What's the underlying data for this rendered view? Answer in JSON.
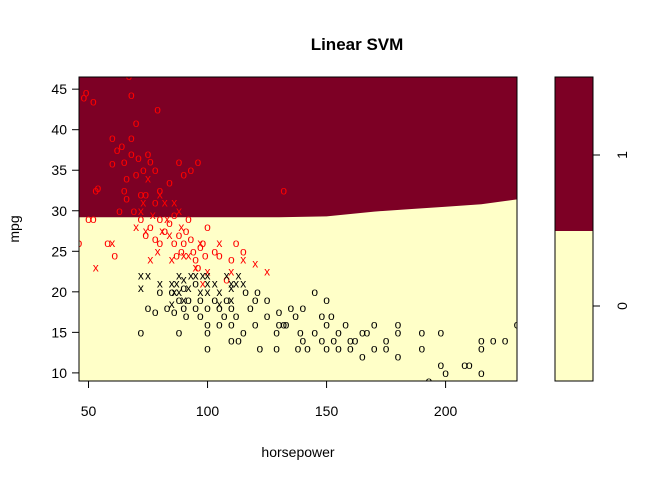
{
  "colors": {
    "class_0": "#FFFFC8",
    "class_1": "#7D0025",
    "point_0": "#000000",
    "point_1": "#FF0000"
  },
  "chart_data": {
    "type": "scatter",
    "title": "Linear SVM",
    "xlabel": "horsepower",
    "ylabel": "mpg",
    "xlim": [
      46,
      230
    ],
    "ylim": [
      9,
      46.5
    ],
    "xticks": [
      50,
      100,
      150,
      200
    ],
    "yticks": [
      10,
      15,
      20,
      25,
      30,
      35,
      40,
      45
    ],
    "decision_boundary": {
      "x": [
        46,
        100,
        130,
        150,
        160,
        170,
        185,
        200,
        215,
        225,
        230
      ],
      "y": [
        29.2,
        29.2,
        29.2,
        29.3,
        29.6,
        29.9,
        30.2,
        30.5,
        30.8,
        31.2,
        31.4
      ],
      "above_class": "1",
      "below_class": "0"
    },
    "legend": {
      "labels": [
        "0",
        "1"
      ],
      "position": "right"
    },
    "points_class_1": [
      [
        46,
        26,
        "o"
      ],
      [
        48,
        44,
        "o"
      ],
      [
        49,
        44.6,
        "o"
      ],
      [
        50,
        29,
        "o"
      ],
      [
        52,
        43.5,
        "o"
      ],
      [
        52,
        29,
        "o"
      ],
      [
        53,
        32.5,
        "o"
      ],
      [
        54,
        32.8,
        "o"
      ],
      [
        58,
        26,
        "o"
      ],
      [
        60,
        35.8,
        "o"
      ],
      [
        60,
        39,
        "o"
      ],
      [
        61,
        24.5,
        "o"
      ],
      [
        62,
        37.5,
        "o"
      ],
      [
        64,
        38,
        "o"
      ],
      [
        65,
        36,
        "o"
      ],
      [
        65,
        32.5,
        "o"
      ],
      [
        66,
        34,
        "o"
      ],
      [
        67,
        46.6,
        "o"
      ],
      [
        68,
        37,
        "o"
      ],
      [
        68,
        44.3,
        "o"
      ],
      [
        70,
        34.5,
        "o"
      ],
      [
        70,
        40.8,
        "o"
      ],
      [
        71,
        36.5,
        "o"
      ],
      [
        72,
        32,
        "o"
      ],
      [
        73,
        35,
        "o"
      ],
      [
        74,
        32,
        "o"
      ],
      [
        75,
        37,
        "o"
      ],
      [
        76,
        36.1,
        "o"
      ],
      [
        78,
        35,
        "o"
      ],
      [
        80,
        29,
        "o"
      ],
      [
        84,
        33.5,
        "o"
      ],
      [
        88,
        36,
        "o"
      ],
      [
        90,
        34.5,
        "o"
      ],
      [
        92,
        29,
        "o"
      ],
      [
        94,
        25,
        "o"
      ],
      [
        96,
        23,
        "o"
      ],
      [
        100,
        28,
        "o"
      ],
      [
        103,
        25,
        "o"
      ],
      [
        105,
        24.5,
        "o"
      ],
      [
        108,
        21.5,
        "o"
      ],
      [
        110,
        24,
        "o"
      ],
      [
        112,
        26,
        "o"
      ],
      [
        115,
        25,
        "o"
      ],
      [
        63,
        30,
        "o"
      ],
      [
        66,
        31.5,
        "o"
      ],
      [
        69,
        30,
        "o"
      ],
      [
        72,
        29,
        "o"
      ],
      [
        74,
        27,
        "o"
      ],
      [
        76,
        28,
        "o"
      ],
      [
        78,
        26.5,
        "o"
      ],
      [
        80,
        26,
        "o"
      ],
      [
        82,
        27.5,
        "o"
      ],
      [
        84,
        28.5,
        "o"
      ],
      [
        86,
        26,
        "o"
      ],
      [
        87,
        24.5,
        "o"
      ],
      [
        88,
        27,
        "o"
      ],
      [
        89,
        25,
        "o"
      ],
      [
        90,
        26,
        "o"
      ],
      [
        91,
        27.5,
        "o"
      ],
      [
        93,
        26.5,
        "o"
      ],
      [
        95,
        24,
        "o"
      ],
      [
        97,
        25.5,
        "o"
      ],
      [
        98,
        26,
        "o"
      ],
      [
        99,
        24.5,
        "o"
      ],
      [
        86,
        29.5,
        "o"
      ],
      [
        78,
        31,
        "o"
      ],
      [
        80,
        32.5,
        "o"
      ],
      [
        132,
        32.5,
        "o"
      ],
      [
        79,
        42.5,
        "o"
      ],
      [
        68,
        39,
        "o"
      ],
      [
        96,
        36,
        "o"
      ],
      [
        93,
        35,
        "o"
      ],
      [
        53,
        23,
        "x"
      ],
      [
        60,
        26,
        "x"
      ],
      [
        70,
        28,
        "x"
      ],
      [
        72,
        30,
        "x"
      ],
      [
        74,
        27.5,
        "x"
      ],
      [
        76,
        24,
        "x"
      ],
      [
        79,
        25,
        "x"
      ],
      [
        80,
        32,
        "x"
      ],
      [
        82,
        31,
        "x"
      ],
      [
        83,
        29,
        "x"
      ],
      [
        85,
        24,
        "x"
      ],
      [
        86,
        31,
        "x"
      ],
      [
        88,
        30,
        "x"
      ],
      [
        90,
        24.5,
        "x"
      ],
      [
        92,
        24.5,
        "x"
      ],
      [
        95,
        23,
        "x"
      ],
      [
        97,
        26,
        "x"
      ],
      [
        98,
        21,
        "x"
      ],
      [
        100,
        22.5,
        "x"
      ],
      [
        105,
        26,
        "x"
      ],
      [
        110,
        22.5,
        "x"
      ],
      [
        115,
        24,
        "x"
      ],
      [
        120,
        23.5,
        "x"
      ],
      [
        125,
        22.5,
        "x"
      ],
      [
        75,
        34,
        "x"
      ],
      [
        73,
        31,
        "x"
      ],
      [
        77,
        29.5,
        "x"
      ],
      [
        81,
        27.5,
        "x"
      ],
      [
        84,
        27,
        "x"
      ],
      [
        89,
        28,
        "x"
      ]
    ],
    "points_class_0": [
      [
        72,
        15,
        "o"
      ],
      [
        75,
        18,
        "o"
      ],
      [
        78,
        17.5,
        "o"
      ],
      [
        80,
        20,
        "o"
      ],
      [
        83,
        18,
        "o"
      ],
      [
        85,
        20,
        "o"
      ],
      [
        86,
        17.5,
        "o"
      ],
      [
        88,
        19,
        "o"
      ],
      [
        88,
        15,
        "o"
      ],
      [
        90,
        18,
        "o"
      ],
      [
        90,
        20.5,
        "o"
      ],
      [
        91,
        17,
        "o"
      ],
      [
        92,
        19,
        "o"
      ],
      [
        95,
        18,
        "o"
      ],
      [
        95,
        21,
        "o"
      ],
      [
        97,
        19,
        "o"
      ],
      [
        97,
        17,
        "o"
      ],
      [
        100,
        18,
        "o"
      ],
      [
        100,
        16,
        "o"
      ],
      [
        100,
        15,
        "o"
      ],
      [
        100,
        13,
        "o"
      ],
      [
        103,
        19,
        "o"
      ],
      [
        105,
        16,
        "o"
      ],
      [
        105,
        18,
        "o"
      ],
      [
        107,
        17,
        "o"
      ],
      [
        108,
        19,
        "o"
      ],
      [
        110,
        18,
        "o"
      ],
      [
        110,
        16,
        "o"
      ],
      [
        110,
        14,
        "o"
      ],
      [
        112,
        17,
        "o"
      ],
      [
        113,
        14,
        "o"
      ],
      [
        115,
        15,
        "o"
      ],
      [
        118,
        18,
        "o"
      ],
      [
        120,
        16,
        "o"
      ],
      [
        120,
        19,
        "o"
      ],
      [
        121,
        20,
        "o"
      ],
      [
        122,
        13,
        "o"
      ],
      [
        125,
        19,
        "o"
      ],
      [
        125,
        17,
        "o"
      ],
      [
        129,
        15,
        "o"
      ],
      [
        129,
        13,
        "o"
      ],
      [
        130,
        16,
        "o"
      ],
      [
        130,
        17.5,
        "o"
      ],
      [
        133,
        16,
        "o"
      ],
      [
        135,
        18,
        "o"
      ],
      [
        137,
        17,
        "o"
      ],
      [
        139,
        15,
        "o"
      ],
      [
        140,
        14,
        "o"
      ],
      [
        140,
        18,
        "o"
      ],
      [
        142,
        13,
        "o"
      ],
      [
        145,
        20,
        "o"
      ],
      [
        145,
        15,
        "o"
      ],
      [
        148,
        17,
        "o"
      ],
      [
        148,
        14,
        "o"
      ],
      [
        150,
        16,
        "o"
      ],
      [
        150,
        13,
        "o"
      ],
      [
        150,
        19,
        "o"
      ],
      [
        152,
        17,
        "o"
      ],
      [
        153,
        14,
        "o"
      ],
      [
        155,
        15,
        "o"
      ],
      [
        155,
        13,
        "o"
      ],
      [
        158,
        16,
        "o"
      ],
      [
        160,
        14,
        "o"
      ],
      [
        160,
        13,
        "o"
      ],
      [
        165,
        15,
        "o"
      ],
      [
        165,
        12,
        "o"
      ],
      [
        167,
        15,
        "o"
      ],
      [
        170,
        16,
        "o"
      ],
      [
        170,
        13,
        "o"
      ],
      [
        175,
        14,
        "o"
      ],
      [
        175,
        13,
        "o"
      ],
      [
        180,
        15,
        "o"
      ],
      [
        180,
        16,
        "o"
      ],
      [
        180,
        12,
        "o"
      ],
      [
        190,
        15,
        "o"
      ],
      [
        190,
        13,
        "o"
      ],
      [
        193,
        9,
        "o"
      ],
      [
        198,
        15,
        "o"
      ],
      [
        198,
        11,
        "o"
      ],
      [
        200,
        10,
        "o"
      ],
      [
        208,
        11,
        "o"
      ],
      [
        210,
        11,
        "o"
      ],
      [
        215,
        10,
        "o"
      ],
      [
        215,
        13,
        "o"
      ],
      [
        215,
        14,
        "o"
      ],
      [
        220,
        14,
        "o"
      ],
      [
        225,
        14,
        "o"
      ],
      [
        230,
        16,
        "o"
      ],
      [
        116,
        20,
        "o"
      ],
      [
        132,
        16,
        "o"
      ],
      [
        138,
        13,
        "o"
      ],
      [
        162,
        14,
        "o"
      ],
      [
        72,
        22,
        "x"
      ],
      [
        72,
        20.5,
        "x"
      ],
      [
        75,
        22,
        "x"
      ],
      [
        80,
        21,
        "x"
      ],
      [
        85,
        21,
        "x"
      ],
      [
        85,
        18.5,
        "x"
      ],
      [
        86,
        20,
        "x"
      ],
      [
        87,
        21,
        "x"
      ],
      [
        88,
        20,
        "x"
      ],
      [
        90,
        21.5,
        "x"
      ],
      [
        90,
        19,
        "x"
      ],
      [
        92,
        20.5,
        "x"
      ],
      [
        95,
        22,
        "x"
      ],
      [
        97,
        20,
        "x"
      ],
      [
        98,
        22,
        "x"
      ],
      [
        100,
        22,
        "x"
      ],
      [
        100,
        21,
        "x"
      ],
      [
        100,
        20,
        "x"
      ],
      [
        103,
        21,
        "x"
      ],
      [
        105,
        20,
        "x"
      ],
      [
        105,
        18.5,
        "x"
      ],
      [
        108,
        22,
        "x"
      ],
      [
        110,
        21,
        "x"
      ],
      [
        110,
        19,
        "x"
      ],
      [
        110,
        20.5,
        "x"
      ],
      [
        112,
        21,
        "x"
      ],
      [
        113,
        22,
        "x"
      ],
      [
        115,
        21,
        "x"
      ],
      [
        88,
        22,
        "x"
      ],
      [
        93,
        22,
        "x"
      ]
    ]
  }
}
